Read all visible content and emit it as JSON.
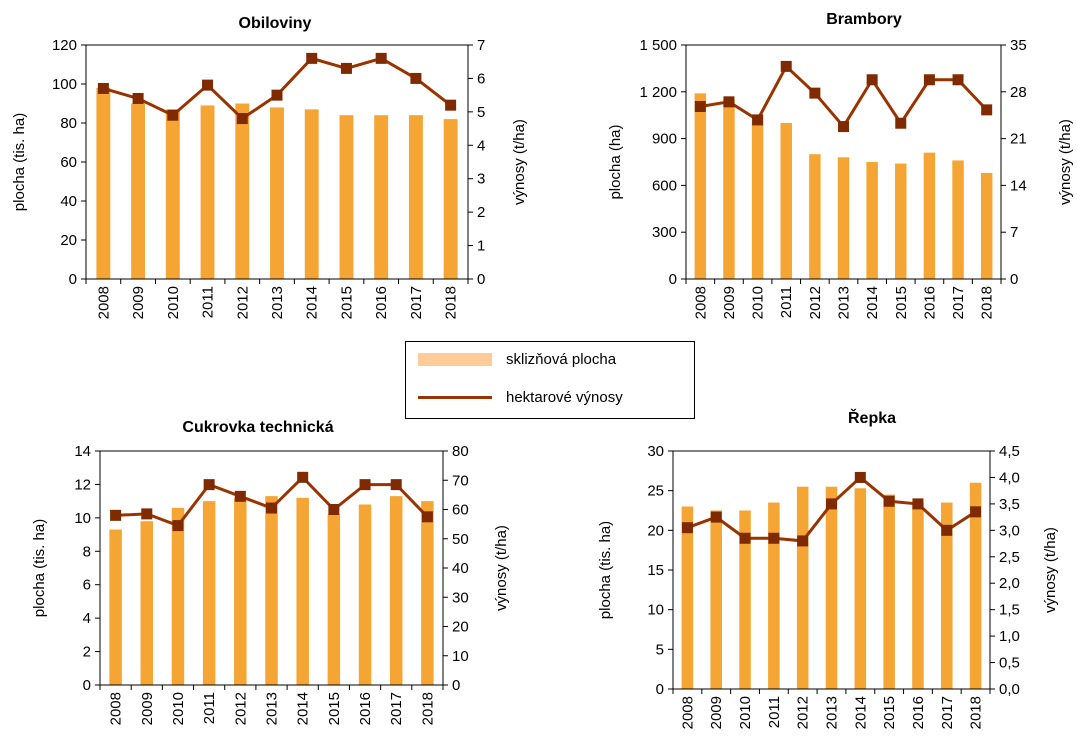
{
  "legend": {
    "bar_label": "sklizňová plocha",
    "line_label": "hektarové výnosy"
  },
  "colors": {
    "bar": "#f4a534",
    "legend_bar": "#ffcc99",
    "line": "#993300",
    "marker": "#7f2a00"
  },
  "chart_data": [
    {
      "id": "obiloviny",
      "type": "bar",
      "title": "Obiloviny",
      "categories": [
        "2008",
        "2009",
        "2010",
        "2011",
        "2012",
        "2013",
        "2014",
        "2015",
        "2016",
        "2017",
        "2018"
      ],
      "ylabel": "plocha (tis. ha)",
      "y2label": "výnosy (t/ha)",
      "ylim": [
        0,
        120
      ],
      "yticks": [
        "0",
        "20",
        "40",
        "60",
        "80",
        "100",
        "120"
      ],
      "y2lim": [
        0,
        7
      ],
      "y2ticks": [
        "0",
        "1",
        "2",
        "3",
        "4",
        "5",
        "6",
        "7"
      ],
      "series": [
        {
          "name": "sklizňová plocha",
          "kind": "bar",
          "axis": "left",
          "values": [
            98,
            90,
            87,
            89,
            90,
            88,
            87,
            84,
            84,
            84,
            82
          ]
        },
        {
          "name": "hektarové výnosy",
          "kind": "line",
          "axis": "right",
          "values": [
            5.7,
            5.4,
            4.9,
            5.8,
            4.8,
            5.5,
            6.6,
            6.3,
            6.6,
            6.0,
            5.2
          ]
        }
      ]
    },
    {
      "id": "brambory",
      "type": "bar",
      "title": "Brambory",
      "categories": [
        "2008",
        "2009",
        "2010",
        "2011",
        "2012",
        "2013",
        "2014",
        "2015",
        "2016",
        "2017",
        "2018"
      ],
      "ylabel": "plocha (ha)",
      "y2label": "výnosy (t/ha)",
      "ylim": [
        0,
        1500
      ],
      "yticks": [
        "0",
        "300",
        "600",
        "900",
        "1 200",
        "1 500"
      ],
      "y2lim": [
        0,
        35
      ],
      "y2ticks": [
        "0",
        "7",
        "14",
        "21",
        "28",
        "35"
      ],
      "series": [
        {
          "name": "sklizňová plocha",
          "kind": "bar",
          "axis": "left",
          "values": [
            1190,
            1150,
            1050,
            1000,
            800,
            780,
            750,
            740,
            810,
            760,
            680
          ]
        },
        {
          "name": "hektarové výnosy",
          "kind": "line",
          "axis": "right",
          "values": [
            25.8,
            26.5,
            23.8,
            31.8,
            27.8,
            22.8,
            29.8,
            23.3,
            29.8,
            29.8,
            25.3
          ]
        }
      ]
    },
    {
      "id": "cukrovka",
      "type": "bar",
      "title": "Cukrovka technická",
      "categories": [
        "2008",
        "2009",
        "2010",
        "2011",
        "2012",
        "2013",
        "2014",
        "2015",
        "2016",
        "2017",
        "2018"
      ],
      "ylabel": "plocha (tis. ha)",
      "y2label": "výnosy (t/ha)",
      "ylim": [
        0,
        14
      ],
      "yticks": [
        "0",
        "2",
        "4",
        "6",
        "8",
        "10",
        "12",
        "14"
      ],
      "y2lim": [
        0,
        80
      ],
      "y2ticks": [
        "0",
        "10",
        "20",
        "30",
        "40",
        "50",
        "60",
        "70",
        "80"
      ],
      "series": [
        {
          "name": "sklizňová plocha",
          "kind": "bar",
          "axis": "left",
          "values": [
            9.3,
            9.8,
            10.6,
            11.0,
            11.2,
            11.3,
            11.2,
            10.2,
            10.8,
            11.3,
            11.0
          ]
        },
        {
          "name": "hektarové výnosy",
          "kind": "line",
          "axis": "right",
          "values": [
            58,
            58.5,
            54.5,
            68.5,
            64.5,
            60.5,
            71,
            60,
            68.5,
            68.5,
            57.5
          ]
        }
      ]
    },
    {
      "id": "repka",
      "type": "bar",
      "title": "Řepka",
      "categories": [
        "2008",
        "2009",
        "2010",
        "2011",
        "2012",
        "2013",
        "2014",
        "2015",
        "2016",
        "2017",
        "2018"
      ],
      "ylabel": "plocha (tis. ha)",
      "y2label": "výnosy (t/ha)",
      "ylim": [
        0,
        30
      ],
      "yticks": [
        "0",
        "5",
        "10",
        "15",
        "20",
        "25",
        "30"
      ],
      "y2lim": [
        0,
        4.5
      ],
      "y2ticks": [
        "0,0",
        "0,5",
        "1,0",
        "1,5",
        "2,0",
        "2,5",
        "3,0",
        "3,5",
        "4,0",
        "4,5"
      ],
      "series": [
        {
          "name": "sklizňová plocha",
          "kind": "bar",
          "axis": "left",
          "values": [
            23,
            22.5,
            22.5,
            23.5,
            25.5,
            25.5,
            25.3,
            24.5,
            23.5,
            23.5,
            26
          ]
        },
        {
          "name": "hektarové výnosy",
          "kind": "line",
          "axis": "right",
          "values": [
            3.05,
            3.25,
            2.85,
            2.85,
            2.8,
            3.5,
            4.0,
            3.55,
            3.5,
            3.0,
            3.35
          ]
        }
      ]
    }
  ]
}
